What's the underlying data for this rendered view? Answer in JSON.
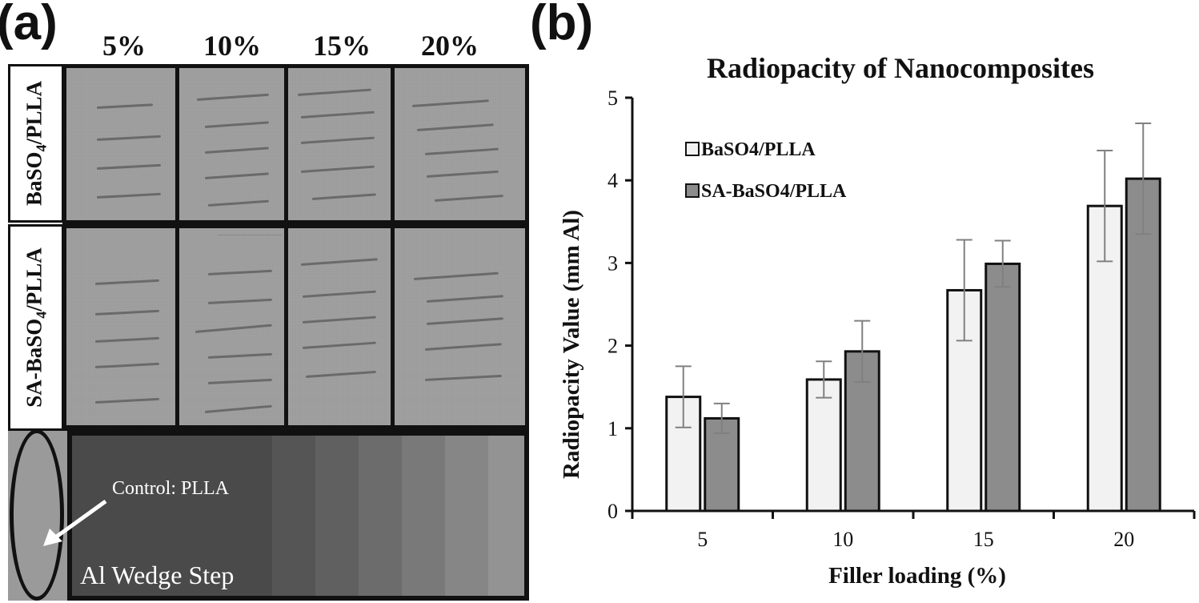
{
  "panel_a": {
    "label": "(a)",
    "columns": [
      "5%",
      "10%",
      "15%",
      "20%"
    ],
    "rows": [
      {
        "label_main": "BaSO",
        "label_sub": "4",
        "label_tail": "/PLLA"
      },
      {
        "label_main": "SA-BaSO",
        "label_sub": "4",
        "label_tail": "/PLLA"
      }
    ],
    "control_label": "Control: PLLA",
    "wedge_label": "Al Wedge Step"
  },
  "panel_b": {
    "label": "(b)"
  },
  "colors": {
    "series1": "#f2f2f2",
    "series2": "#8c8c8c",
    "error_bar": "#808080",
    "axis": "#111111"
  },
  "chart_data": {
    "type": "bar",
    "title": "Radiopacity of Nanocomposites",
    "xlabel": "Filler loading (%)",
    "ylabel": "Radiopacity Value (mm Al)",
    "categories": [
      "5",
      "10",
      "15",
      "20"
    ],
    "ylim": [
      0,
      5
    ],
    "yticks": [
      0,
      1,
      2,
      3,
      4,
      5
    ],
    "grid": false,
    "legend_position": "top-left",
    "series": [
      {
        "name": "BaSO4/PLLA",
        "values": [
          1.38,
          1.59,
          2.67,
          3.69
        ],
        "errors": [
          0.37,
          0.22,
          0.61,
          0.67
        ]
      },
      {
        "name": "SA-BaSO4/PLLA",
        "values": [
          1.12,
          1.93,
          2.99,
          4.02
        ],
        "errors": [
          0.18,
          0.37,
          0.28,
          0.67
        ]
      }
    ]
  }
}
